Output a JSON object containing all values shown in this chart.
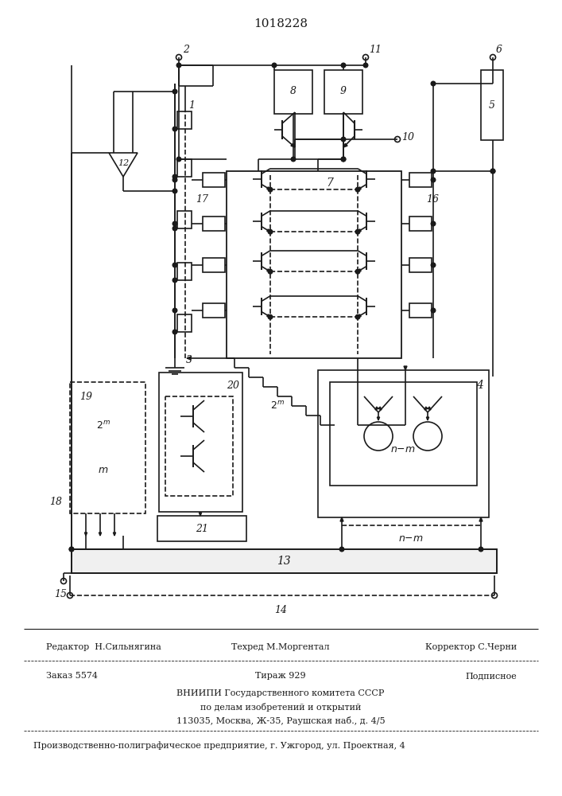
{
  "title": "1018228",
  "bg_color": "#ffffff",
  "line_color": "#1a1a1a",
  "footer_lines": [
    {
      "left": "Редактор  Н.Сильнягина",
      "center": "Техред М.Моргентал",
      "right": "Корректор С.Черни"
    },
    {
      "left": "Заказ 5574",
      "center": "Тираж 929",
      "right": "Подписное"
    },
    {
      "center": "ВНИИПИ Государственного комитета СССР"
    },
    {
      "center": "по делам изобретений и открытий"
    },
    {
      "center": "113035, Москва, Ж-35, Раушская наб., д. 4/5"
    },
    {
      "center": "Производственно-полиграфическое предприятие, г. Ужгород, ул. Проектная, 4"
    }
  ]
}
